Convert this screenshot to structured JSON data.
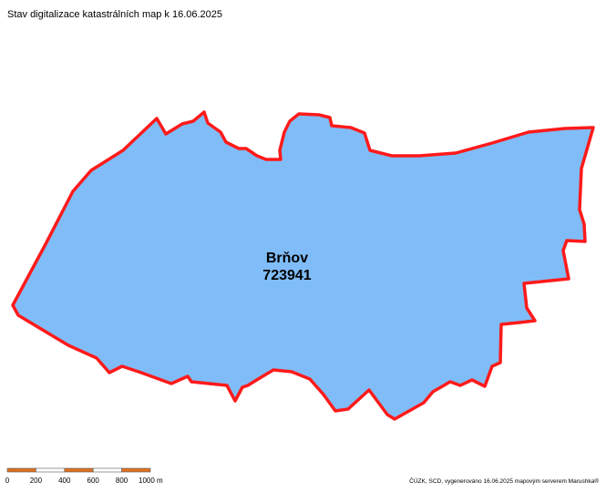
{
  "header": {
    "title": "Stav digitalizace katastrálních map k 16.06.2025"
  },
  "parcel": {
    "name": "Brňov",
    "code": "723941"
  },
  "scale_bar": {
    "labels": [
      "0",
      "200",
      "400",
      "600",
      "800",
      "1000 m"
    ]
  },
  "footer": {
    "credit": "ČÚZK, SCD, vygenerováno 16.06.2025 mapovým serverem Marushka®"
  }
}
